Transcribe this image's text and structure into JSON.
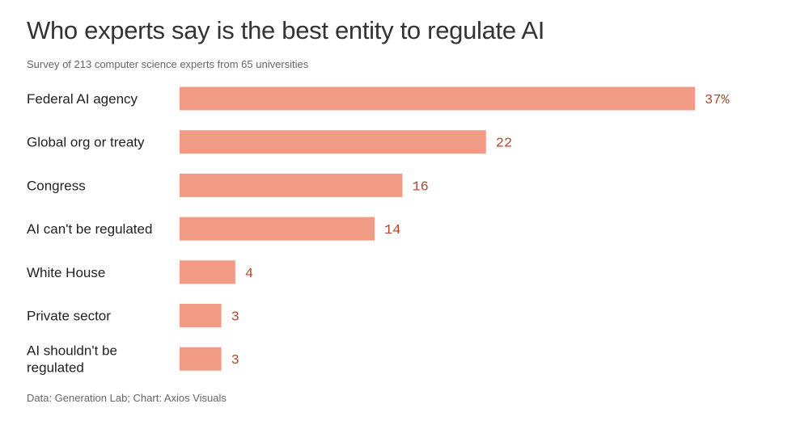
{
  "header": {
    "title": "Who experts say is the best entity to regulate AI",
    "subtitle": "Survey of 213 computer science experts from 65 universities"
  },
  "footer": {
    "source": "Data: Generation Lab; Chart: Axios Visuals"
  },
  "colors": {
    "bar": "#f29b84",
    "value_text": "#b04a2e"
  },
  "chart_data": {
    "type": "bar",
    "orientation": "horizontal",
    "title": "Who experts say is the best entity to regulate AI",
    "subtitle": "Survey of 213 computer science experts from 65 universities",
    "categories": [
      "Federal AI agency",
      "Global org or treaty",
      "Congress",
      "AI can't be regulated",
      "White House",
      "Private sector",
      "AI shouldn't be regulated"
    ],
    "category_lines": [
      [
        "Federal AI agency"
      ],
      [
        "Global org or treaty"
      ],
      [
        "Congress"
      ],
      [
        "AI can't be regulated"
      ],
      [
        "White House"
      ],
      [
        "Private sector"
      ],
      [
        "AI shouldn't be",
        "regulated"
      ]
    ],
    "values": [
      37,
      22,
      16,
      14,
      4,
      3,
      3
    ],
    "value_labels": [
      "37%",
      "22",
      "16",
      "14",
      "4",
      "3",
      "3"
    ],
    "unit": "%",
    "xlim": [
      0,
      37
    ],
    "grid": false,
    "legend": "none"
  }
}
